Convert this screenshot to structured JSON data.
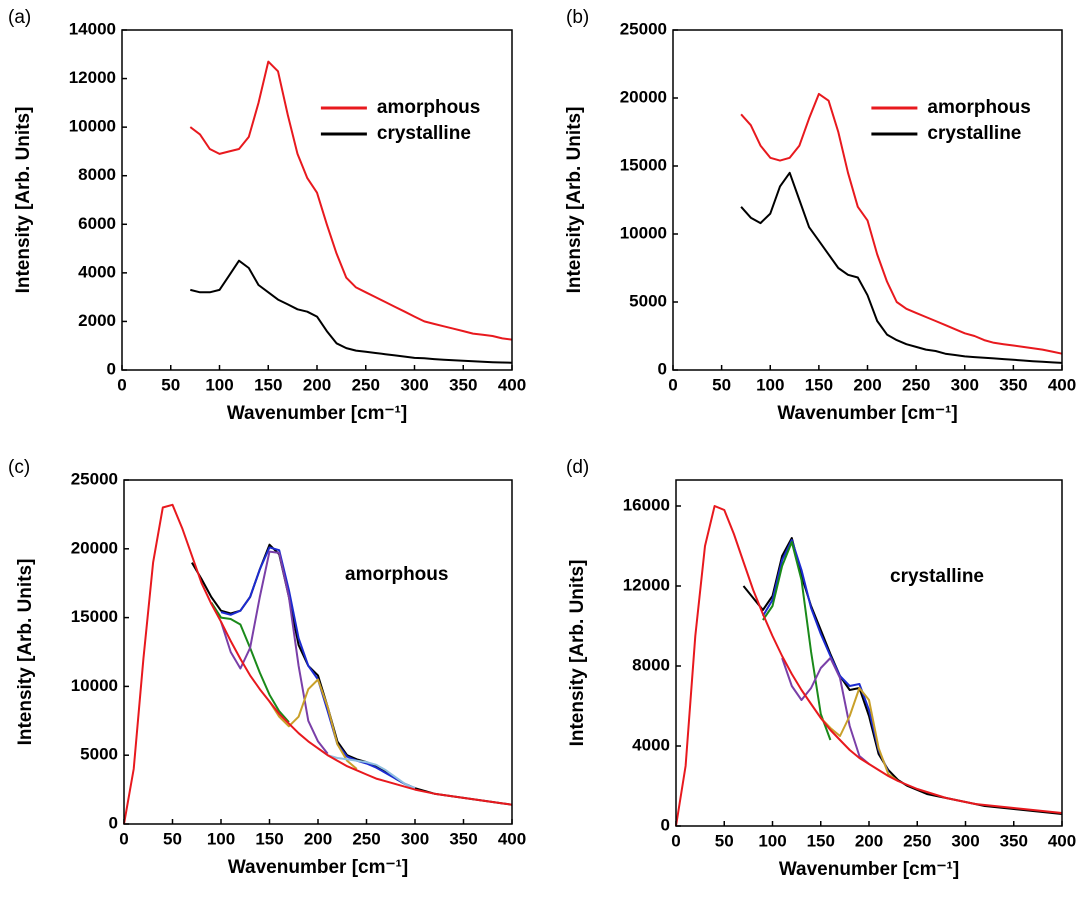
{
  "chart_data": [
    {
      "type": "line",
      "panel_label": "(a)",
      "x_label": "Wavenumber [cm⁻¹]",
      "y_label": "Intensity [Arb. Units]",
      "x": [
        70,
        80,
        90,
        100,
        110,
        120,
        130,
        140,
        150,
        160,
        170,
        180,
        190,
        200,
        210,
        220,
        230,
        240,
        250,
        260,
        270,
        280,
        290,
        300,
        310,
        320,
        330,
        340,
        350,
        360,
        370,
        380,
        390,
        400
      ],
      "series": [
        {
          "name": "amorphous",
          "color": "#e8191e",
          "values": [
            10000,
            9700,
            9100,
            8900,
            9000,
            9100,
            9600,
            11000,
            12700,
            12300,
            10500,
            8900,
            7900,
            7300,
            6000,
            4800,
            3800,
            3400,
            3200,
            3000,
            2800,
            2600,
            2400,
            2200,
            2000,
            1900,
            1800,
            1700,
            1600,
            1500,
            1450,
            1400,
            1300,
            1250
          ]
        },
        {
          "name": "crystalline",
          "color": "#000000",
          "values": [
            3300,
            3200,
            3200,
            3300,
            3900,
            4500,
            4200,
            3500,
            3200,
            2900,
            2700,
            2500,
            2400,
            2200,
            1600,
            1100,
            900,
            800,
            750,
            700,
            650,
            600,
            550,
            500,
            480,
            450,
            420,
            400,
            380,
            360,
            340,
            320,
            310,
            300
          ]
        }
      ],
      "xlim": [
        0,
        400
      ],
      "xticks": [
        0,
        50,
        100,
        150,
        200,
        250,
        300,
        350,
        400
      ],
      "ylim": [
        0,
        14000
      ],
      "yticks": [
        0,
        2000,
        4000,
        6000,
        8000,
        10000,
        12000,
        14000
      ],
      "legend": "upper right"
    },
    {
      "type": "line",
      "panel_label": "(b)",
      "x_label": "Wavenumber [cm⁻¹]",
      "y_label": "Intensity [Arb. Units]",
      "x": [
        70,
        80,
        90,
        100,
        110,
        120,
        130,
        140,
        150,
        160,
        170,
        180,
        190,
        200,
        210,
        220,
        230,
        240,
        250,
        260,
        270,
        280,
        290,
        300,
        310,
        320,
        330,
        340,
        350,
        360,
        370,
        380,
        390,
        400
      ],
      "series": [
        {
          "name": "amorphous",
          "color": "#e8191e",
          "values": [
            18800,
            18000,
            16500,
            15600,
            15400,
            15600,
            16500,
            18500,
            20300,
            19800,
            17500,
            14500,
            12000,
            11000,
            8500,
            6500,
            5000,
            4500,
            4200,
            3900,
            3600,
            3300,
            3000,
            2700,
            2500,
            2200,
            2000,
            1900,
            1800,
            1700,
            1600,
            1500,
            1350,
            1200
          ]
        },
        {
          "name": "crystalline",
          "color": "#000000",
          "values": [
            12000,
            11200,
            10800,
            11500,
            13500,
            14500,
            12500,
            10500,
            9500,
            8500,
            7500,
            7000,
            6800,
            5500,
            3600,
            2600,
            2200,
            1900,
            1700,
            1500,
            1400,
            1200,
            1100,
            1000,
            950,
            900,
            850,
            800,
            750,
            700,
            650,
            600,
            560,
            520
          ]
        }
      ],
      "xlim": [
        0,
        400
      ],
      "xticks": [
        0,
        50,
        100,
        150,
        200,
        250,
        300,
        350,
        400
      ],
      "ylim": [
        0,
        25000
      ],
      "yticks": [
        0,
        5000,
        10000,
        15000,
        20000,
        25000
      ],
      "legend": "upper right"
    },
    {
      "type": "line",
      "panel_label": "(c)",
      "x_label": "Wavenumber [cm⁻¹]",
      "y_label": "Intensity [Arb. Units]",
      "annotation": "amorphous",
      "x": [
        0,
        10,
        20,
        30,
        40,
        50,
        60,
        70,
        80,
        90,
        100,
        110,
        120,
        130,
        140,
        150,
        160,
        170,
        180,
        190,
        200,
        210,
        220,
        230,
        240,
        250,
        260,
        270,
        280,
        290,
        300,
        310,
        320,
        330,
        340,
        350,
        360,
        370,
        380,
        390,
        400
      ],
      "series": [
        {
          "color": "#000000",
          "values": [
            null,
            null,
            null,
            null,
            null,
            null,
            null,
            19000,
            17800,
            16500,
            15500,
            15300,
            15500,
            16500,
            18500,
            20300,
            19600,
            16500,
            13000,
            11500,
            10800,
            8500,
            6000,
            5000,
            4700,
            4500,
            4200,
            3800,
            3300,
            2900,
            2600,
            2400,
            2200,
            2100,
            2000,
            1900,
            1800,
            1700,
            1600,
            1500,
            1400
          ]
        },
        {
          "color": "#1c2bd1",
          "values": [
            null,
            null,
            null,
            null,
            null,
            null,
            null,
            null,
            null,
            null,
            15400,
            15200,
            15500,
            16500,
            18500,
            20100,
            19900,
            17000,
            13500,
            11500,
            10500,
            8200,
            5800,
            4900,
            4600,
            4400,
            4100,
            3700,
            3300,
            2900,
            2600,
            null,
            null,
            null,
            null,
            null,
            null,
            null,
            null,
            null,
            null
          ]
        },
        {
          "color": "#1a8a1a",
          "values": [
            null,
            null,
            null,
            null,
            null,
            null,
            null,
            null,
            null,
            16100,
            15000,
            14900,
            14500,
            12800,
            11000,
            9400,
            8200,
            7400,
            null,
            null,
            null,
            null,
            null,
            null,
            null,
            null,
            null,
            null,
            null,
            null,
            null,
            null,
            null,
            null,
            null,
            null,
            null,
            null,
            null,
            null,
            null
          ]
        },
        {
          "color": "#7a3fa8",
          "values": [
            null,
            null,
            null,
            null,
            null,
            null,
            null,
            null,
            null,
            null,
            14700,
            12500,
            11300,
            12800,
            16500,
            19800,
            19700,
            16500,
            11500,
            7500,
            6000,
            5100,
            null,
            null,
            null,
            null,
            null,
            null,
            null,
            null,
            null,
            null,
            null,
            null,
            null,
            null,
            null,
            null,
            null,
            null,
            null
          ]
        },
        {
          "color": "#c9a02a",
          "values": [
            null,
            null,
            null,
            null,
            null,
            null,
            null,
            null,
            null,
            null,
            null,
            null,
            null,
            null,
            null,
            8900,
            7800,
            7100,
            7800,
            9800,
            10500,
            8500,
            5800,
            4600,
            4000,
            null,
            null,
            null,
            null,
            null,
            null,
            null,
            null,
            null,
            null,
            null,
            null,
            null,
            null,
            null,
            null
          ]
        },
        {
          "color": "#8fbfe0",
          "values": [
            null,
            null,
            null,
            null,
            null,
            null,
            null,
            null,
            null,
            null,
            null,
            null,
            null,
            null,
            null,
            null,
            null,
            null,
            null,
            null,
            5500,
            5000,
            4800,
            4700,
            4600,
            4500,
            4300,
            3900,
            3400,
            2900,
            2600,
            null,
            null,
            null,
            null,
            null,
            null,
            null,
            null,
            null,
            null
          ]
        },
        {
          "color": "#e8191e",
          "values": [
            0,
            4000,
            12000,
            19000,
            23000,
            23200,
            21500,
            19500,
            17500,
            16000,
            14700,
            13300,
            12000,
            10800,
            9800,
            8900,
            8000,
            7300,
            6600,
            6000,
            5500,
            5000,
            4600,
            4200,
            3900,
            3600,
            3300,
            3100,
            2900,
            2700,
            2500,
            2350,
            2200,
            2100,
            2000,
            1900,
            1800,
            1700,
            1600,
            1500,
            1400
          ]
        }
      ],
      "xlim": [
        0,
        400
      ],
      "xticks": [
        0,
        50,
        100,
        150,
        200,
        250,
        300,
        350,
        400
      ],
      "ylim": [
        0,
        25000
      ],
      "yticks": [
        0,
        5000,
        10000,
        15000,
        20000,
        25000
      ]
    },
    {
      "type": "line",
      "panel_label": "(d)",
      "x_label": "Wavenumber [cm⁻¹]",
      "y_label": "Intensity [Arb. Units]",
      "annotation": "crystalline",
      "x": [
        0,
        10,
        20,
        30,
        40,
        50,
        60,
        70,
        80,
        90,
        100,
        110,
        120,
        130,
        140,
        150,
        160,
        170,
        180,
        190,
        200,
        210,
        220,
        230,
        240,
        250,
        260,
        270,
        280,
        290,
        300,
        310,
        320,
        330,
        340,
        350,
        360,
        370,
        380,
        390,
        400
      ],
      "series": [
        {
          "color": "#000000",
          "values": [
            null,
            null,
            null,
            null,
            null,
            null,
            null,
            12000,
            11400,
            10800,
            11500,
            13500,
            14400,
            12500,
            11000,
            9800,
            8600,
            7500,
            6800,
            6900,
            5500,
            3600,
            2800,
            2300,
            2000,
            1800,
            1600,
            1500,
            1400,
            1300,
            1200,
            1100,
            1000,
            950,
            900,
            850,
            800,
            750,
            700,
            650,
            600
          ]
        },
        {
          "color": "#1c2bd1",
          "values": [
            null,
            null,
            null,
            null,
            null,
            null,
            null,
            null,
            null,
            10500,
            11300,
            13300,
            14300,
            12800,
            10900,
            9600,
            8500,
            7500,
            7000,
            7100,
            5800,
            3800,
            2700,
            null,
            null,
            null,
            null,
            null,
            null,
            null,
            null,
            null,
            null,
            null,
            null,
            null,
            null,
            null,
            null,
            null,
            null
          ]
        },
        {
          "color": "#1a8a1a",
          "values": [
            null,
            null,
            null,
            null,
            null,
            null,
            null,
            null,
            null,
            10300,
            11000,
            13000,
            14200,
            12300,
            8700,
            5600,
            4300,
            null,
            null,
            null,
            null,
            null,
            null,
            null,
            null,
            null,
            null,
            null,
            null,
            null,
            null,
            null,
            null,
            null,
            null,
            null,
            null,
            null,
            null,
            null,
            null
          ]
        },
        {
          "color": "#7a3fa8",
          "values": [
            null,
            null,
            null,
            null,
            null,
            null,
            null,
            null,
            null,
            null,
            null,
            8400,
            7000,
            6300,
            6900,
            7900,
            8400,
            7400,
            5000,
            3500,
            3100,
            null,
            null,
            null,
            null,
            null,
            null,
            null,
            null,
            null,
            null,
            null,
            null,
            null,
            null,
            null,
            null,
            null,
            null,
            null,
            null
          ]
        },
        {
          "color": "#c9a02a",
          "values": [
            null,
            null,
            null,
            null,
            null,
            null,
            null,
            null,
            null,
            null,
            null,
            null,
            null,
            null,
            null,
            5400,
            4900,
            4500,
            5500,
            6900,
            6300,
            3900,
            2600,
            2250,
            null,
            null,
            null,
            null,
            null,
            null,
            null,
            null,
            null,
            null,
            null,
            null,
            null,
            null,
            null,
            null,
            null
          ]
        },
        {
          "color": "#e8191e",
          "values": [
            0,
            3000,
            9500,
            14000,
            16000,
            15800,
            14600,
            13200,
            11800,
            10600,
            9500,
            8500,
            7600,
            6800,
            6100,
            5400,
            4800,
            4300,
            3800,
            3400,
            3100,
            2800,
            2500,
            2250,
            2050,
            1850,
            1700,
            1550,
            1400,
            1300,
            1200,
            1100,
            1050,
            1000,
            950,
            900,
            850,
            800,
            750,
            700,
            650
          ]
        }
      ],
      "xlim": [
        0,
        400
      ],
      "xticks": [
        0,
        50,
        100,
        150,
        200,
        250,
        300,
        350,
        400
      ],
      "ylim": [
        0,
        17300
      ],
      "yticks": [
        0,
        4000,
        8000,
        12000,
        16000
      ]
    }
  ]
}
